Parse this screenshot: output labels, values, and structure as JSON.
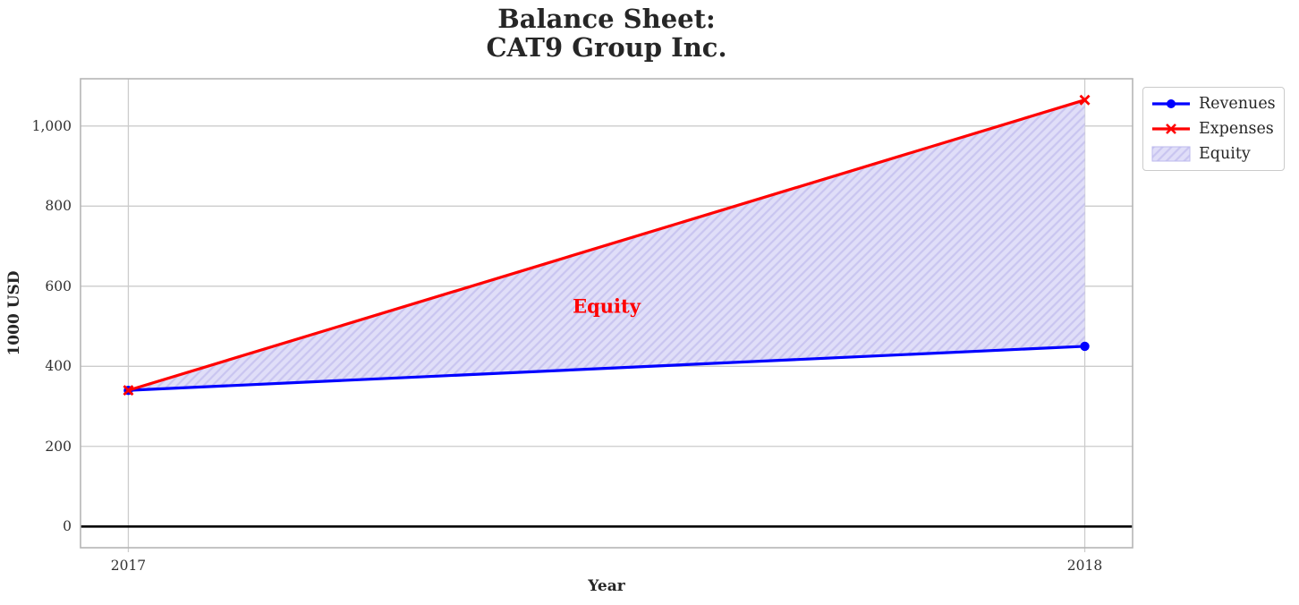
{
  "colors": {
    "grid": "#cccccc",
    "spine": "#b5b5b5",
    "text": "#262626",
    "tick_label": "#313131"
  },
  "chart_data": {
    "type": "line",
    "title": "Balance Sheet:\nCAT9 Group Inc.",
    "title_lines": [
      "Balance Sheet:",
      "CAT9 Group Inc."
    ],
    "xlabel": "Year",
    "ylabel": "1000 USD",
    "x": [
      2017,
      2018
    ],
    "xticklabels": [
      "2017",
      "2018"
    ],
    "yticks": [
      0,
      200,
      400,
      600,
      800,
      1000
    ],
    "yticklabels": [
      "0",
      "200",
      "400",
      "600",
      "800",
      "1,000"
    ],
    "xlim": [
      2016.95,
      2018.05
    ],
    "ylim": [
      -53,
      1118
    ],
    "grid": true,
    "series": [
      {
        "name": "Revenues",
        "values": [
          340,
          450
        ],
        "color": "#0000ff",
        "marker": "circle"
      },
      {
        "name": "Expenses",
        "values": [
          340,
          1065
        ],
        "color": "#ff0000",
        "marker": "x"
      }
    ],
    "fill_between": {
      "label": "Equity",
      "between": [
        "Revenues",
        "Expenses"
      ],
      "facecolor": "#e0def8",
      "hatch": "///",
      "hatch_color": "#c9c5f0"
    },
    "zero_line": {
      "value": 0,
      "color": "#000000"
    },
    "annotation": {
      "text": "Equity",
      "x": 2017.5,
      "y": 550,
      "color": "#ff0000"
    },
    "legend": {
      "position": "upper right, outside axes",
      "entries": [
        "Revenues",
        "Expenses",
        "Equity"
      ]
    }
  }
}
